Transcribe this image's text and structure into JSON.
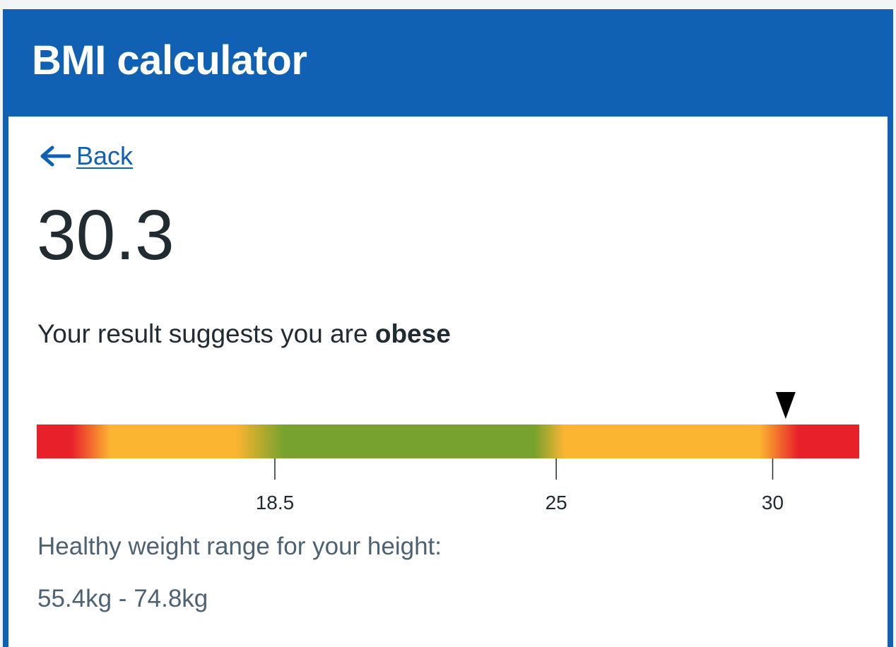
{
  "header": {
    "title": "BMI calculator"
  },
  "nav": {
    "back_label": "Back",
    "back_icon": "arrow-left-icon"
  },
  "result": {
    "bmi": "30.3",
    "bmi_number": 30.3,
    "prefix": "Your result suggests you are ",
    "category": "obese"
  },
  "scale": {
    "min": 13.0,
    "max": 32.0,
    "ticks": [
      {
        "value": 18.5,
        "label": "18.5"
      },
      {
        "value": 25,
        "label": "25"
      },
      {
        "value": 30,
        "label": "30"
      }
    ],
    "marker_icon": "triangle-down-icon",
    "colors": {
      "red": "#e8202a",
      "orange": "#fbb531",
      "green": "#78a22f"
    }
  },
  "healthy": {
    "label": "Healthy weight range for your height:",
    "range": "55.4kg - 74.8kg"
  },
  "theme": {
    "brand_blue": "#1060b4",
    "text_dark": "#212b32",
    "text_secondary": "#4c6272"
  }
}
